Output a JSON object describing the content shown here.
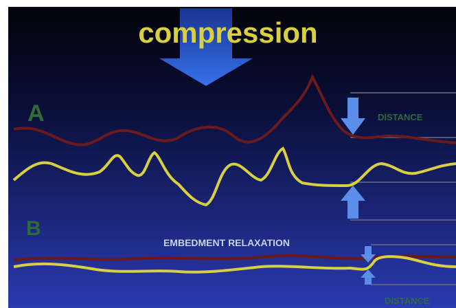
{
  "title": "compression",
  "panels": [
    {
      "label": "A",
      "annotation": "DISTANCE"
    },
    {
      "label": "B",
      "caption": "EMBEDMENT RELAXATION",
      "annotation": "DISTANCE"
    }
  ]
}
